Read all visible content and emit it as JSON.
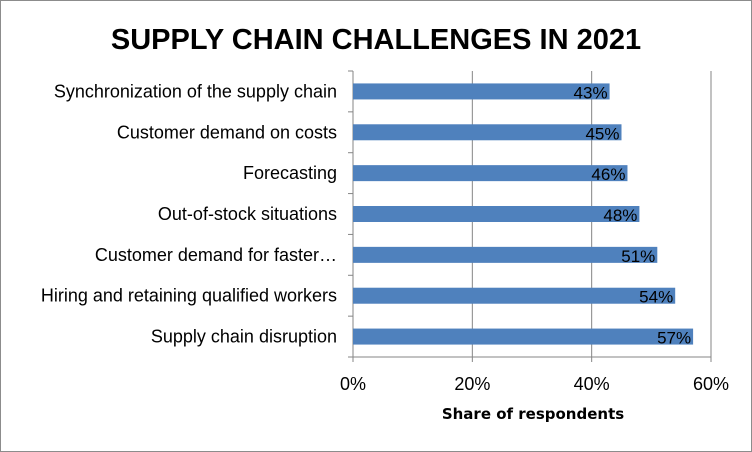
{
  "chart_data": {
    "type": "bar",
    "orientation": "horizontal",
    "title": "SUPPLY CHAIN CHALLENGES IN 2021",
    "xlabel": "Share of respondents",
    "ylabel": "",
    "categories": [
      "Synchronization of the supply chain",
      "Customer demand on costs",
      "Forecasting",
      "Out-of-stock situations",
      "Customer demand for faster…",
      "Hiring and retaining qualified workers",
      "Supply chain disruption"
    ],
    "values": [
      43,
      45,
      46,
      48,
      51,
      54,
      57
    ],
    "data_labels": [
      "43%",
      "45%",
      "46%",
      "48%",
      "51%",
      "54%",
      "57%"
    ],
    "xlim": [
      0,
      60
    ],
    "x_ticks": [
      0,
      20,
      40,
      60
    ],
    "x_tick_labels": [
      "0%",
      "20%",
      "40%",
      "60%"
    ],
    "grid": "vertical",
    "legend": "none",
    "bar_color": "#4f81bd",
    "grid_color": "#858585"
  }
}
